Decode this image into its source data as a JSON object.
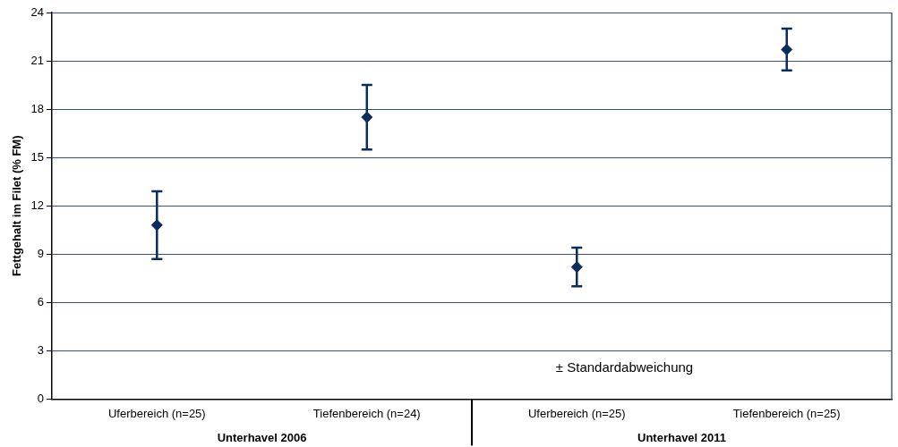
{
  "chart_data": {
    "type": "scatter",
    "ylabel": "Fettgehalt im Filet (% FM)",
    "categories": [
      "Uferbereich (n=25)",
      "Tiefenbereich (n=24)",
      "Uferbereich (n=25)",
      "Tiefenbereich (n=25)"
    ],
    "values": [
      10.8,
      17.5,
      8.2,
      21.7
    ],
    "errors": [
      2.1,
      2.0,
      1.2,
      1.3
    ],
    "color": "#0b2d5e",
    "marker": "diamond",
    "grid": "y",
    "ylim": [
      0,
      24
    ],
    "yticks": [
      0,
      3,
      6,
      9,
      12,
      15,
      18,
      21,
      24
    ],
    "annotations": [
      "Unterhavel 2006",
      "Unterhavel 2011",
      "± Standardabweichung"
    ]
  }
}
